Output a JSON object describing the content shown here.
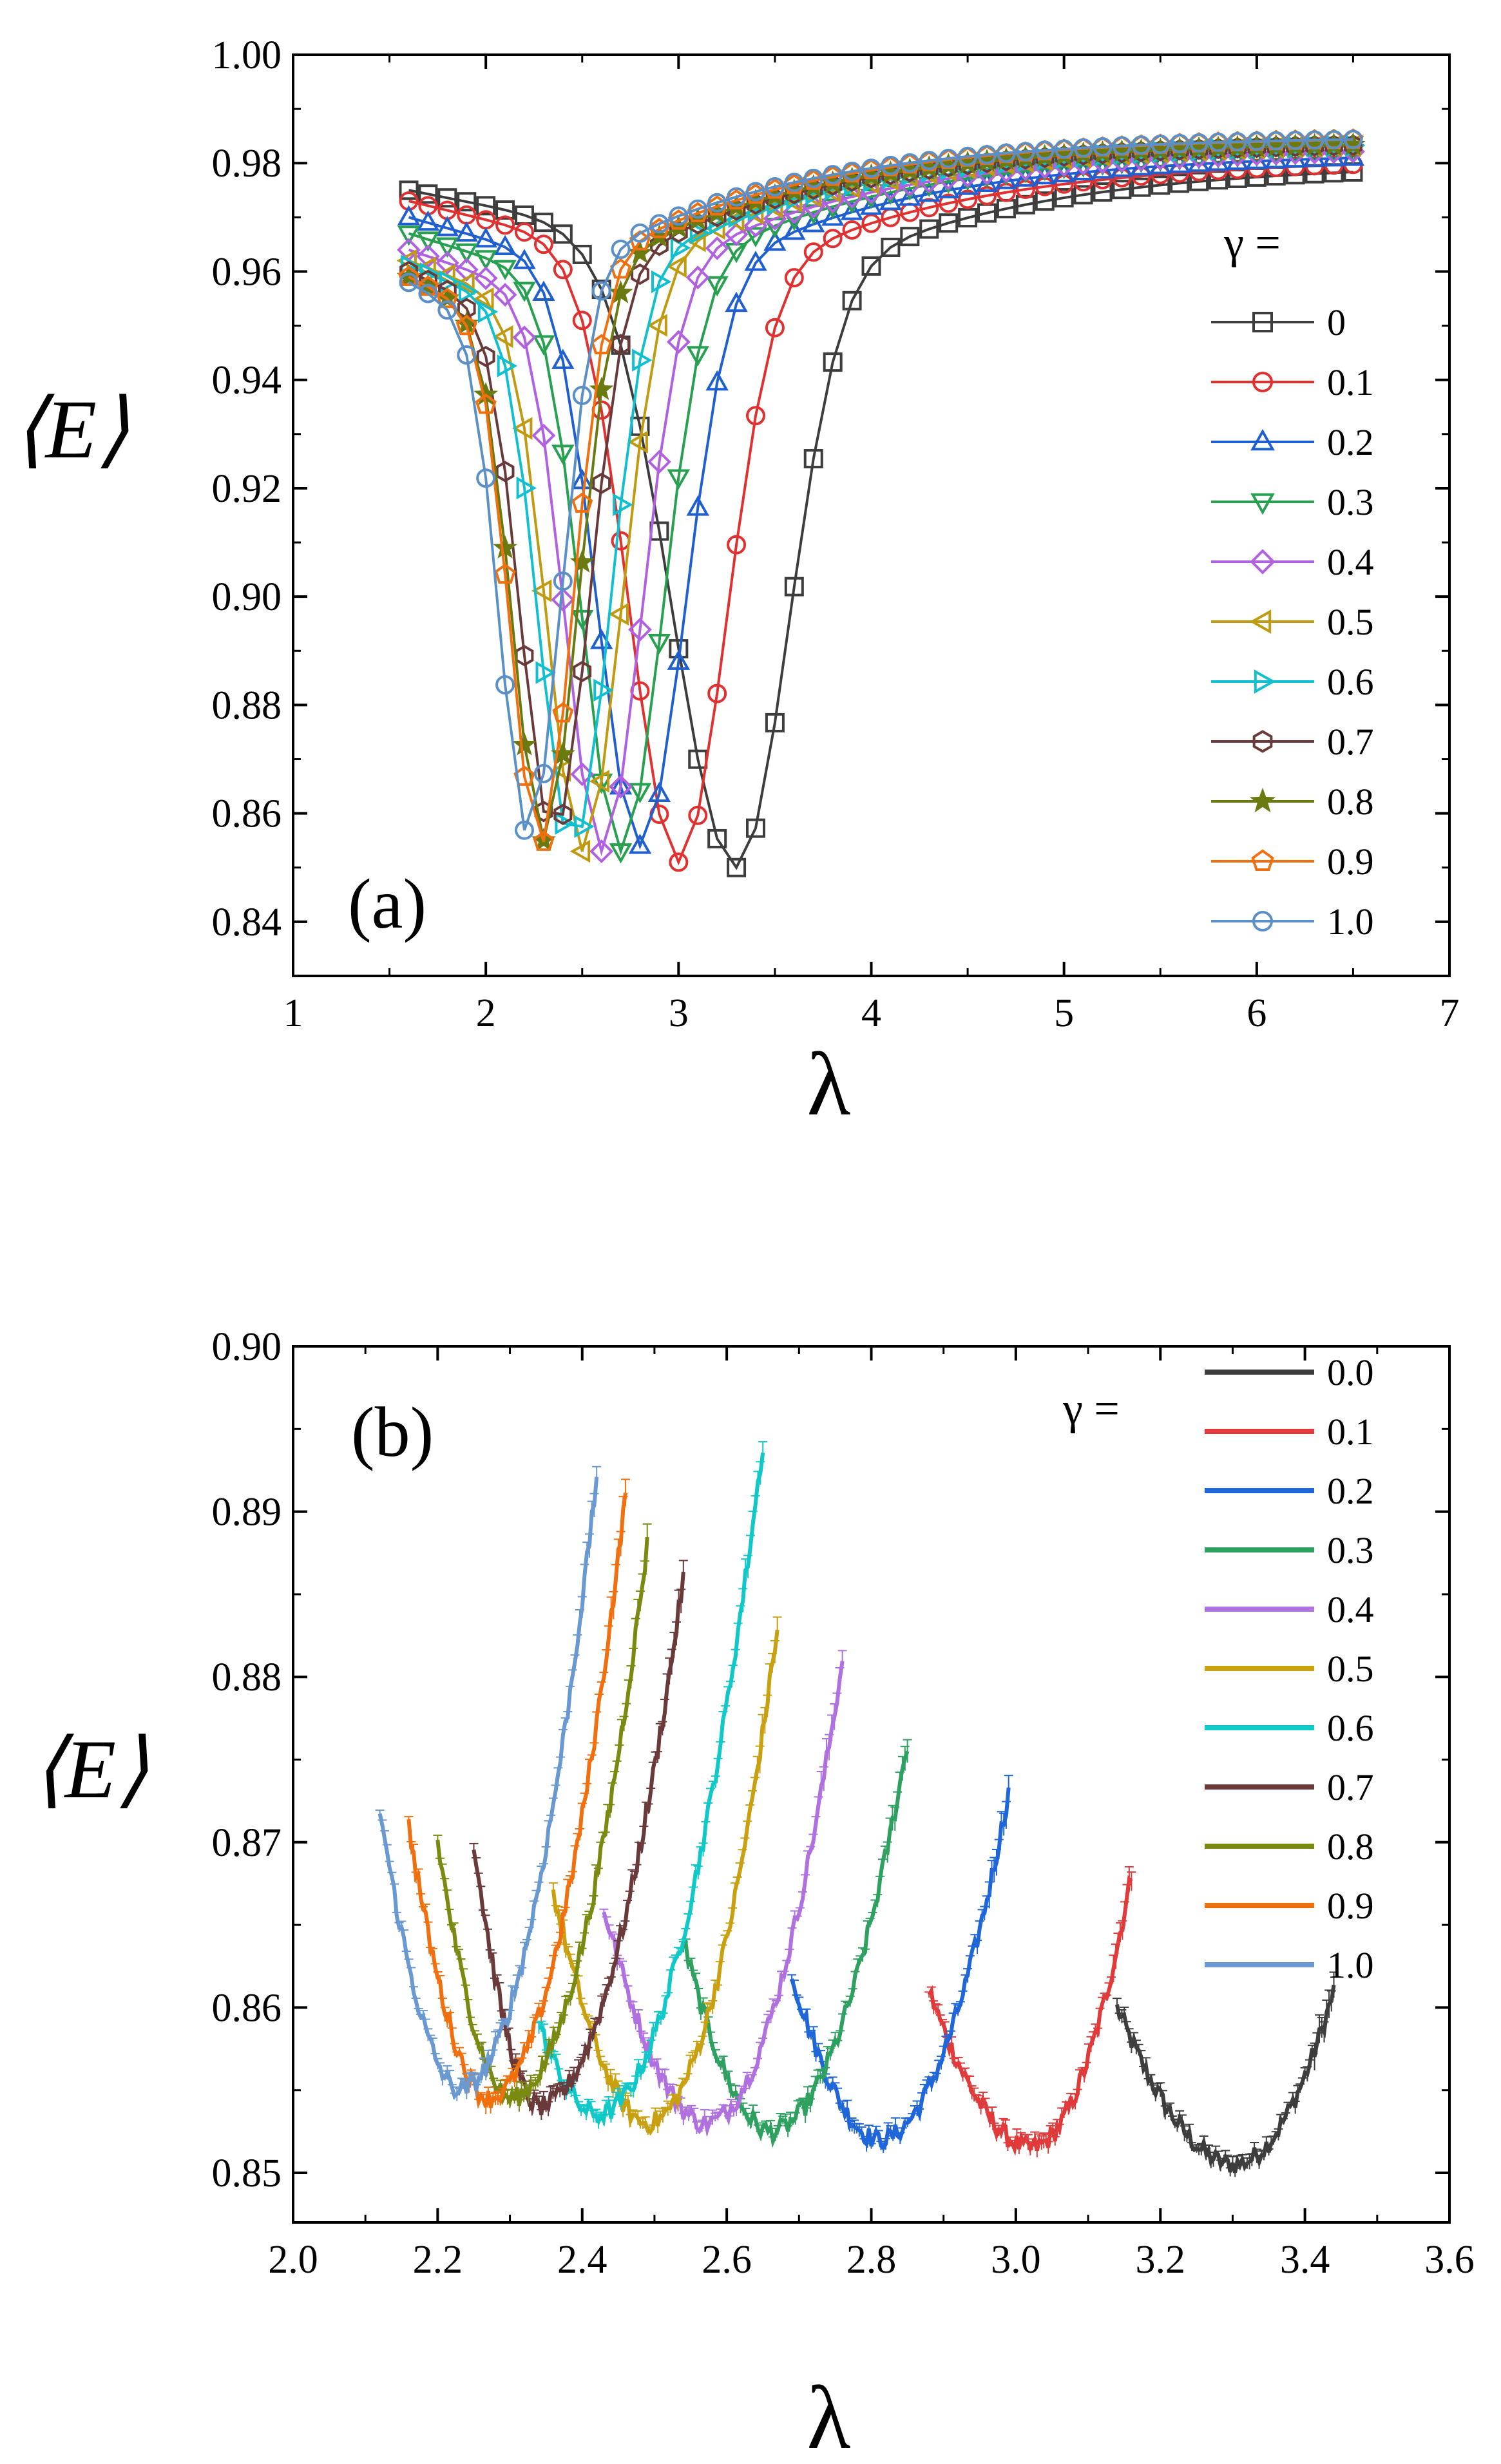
{
  "chart_data": [
    {
      "type": "line",
      "panel_label": "(a)",
      "xlabel": "λ",
      "ylabel": "⟨E⟩",
      "xlim": [
        1,
        7
      ],
      "ylim": [
        0.83,
        1.0
      ],
      "xticks": [
        "1",
        "2",
        "3",
        "4",
        "5",
        "6",
        "7"
      ],
      "yticks": [
        "0.84",
        "0.86",
        "0.88",
        "0.90",
        "0.92",
        "0.94",
        "0.96",
        "0.98",
        "1.00"
      ],
      "legend_title": "γ =",
      "legend_position": "right",
      "series": [
        {
          "name": "0",
          "color": "#3d3d3d",
          "marker": "square",
          "xmin": 3.3,
          "ymin": 0.85,
          "xstart": 1.6,
          "ystart": 0.975,
          "wl": 0.5,
          "wr": 0.35
        },
        {
          "name": "0.1",
          "color": "#e03030",
          "marker": "circle",
          "xmin": 3.0,
          "ymin": 0.851,
          "xstart": 1.6,
          "ystart": 0.973,
          "wl": 0.38,
          "wr": 0.32
        },
        {
          "name": "0.2",
          "color": "#1f5fd0",
          "marker": "triangle-up",
          "xmin": 2.8,
          "ymin": 0.854,
          "xstart": 1.6,
          "ystart": 0.97,
          "wl": 0.33,
          "wr": 0.3
        },
        {
          "name": "0.3",
          "color": "#27a050",
          "marker": "triangle-down",
          "xmin": 2.7,
          "ymin": 0.853,
          "xstart": 1.6,
          "ystart": 0.967,
          "wl": 0.3,
          "wr": 0.28
        },
        {
          "name": "0.4",
          "color": "#b060e0",
          "marker": "diamond",
          "xmin": 2.6,
          "ymin": 0.853,
          "xstart": 1.6,
          "ystart": 0.964,
          "wl": 0.28,
          "wr": 0.27
        },
        {
          "name": "0.5",
          "color": "#c09a10",
          "marker": "triangle-left",
          "xmin": 2.5,
          "ymin": 0.853,
          "xstart": 1.6,
          "ystart": 0.962,
          "wl": 0.27,
          "wr": 0.26
        },
        {
          "name": "0.6",
          "color": "#10c0d0",
          "marker": "triangle-right",
          "xmin": 2.45,
          "ymin": 0.854,
          "xstart": 1.6,
          "ystart": 0.961,
          "wl": 0.26,
          "wr": 0.25
        },
        {
          "name": "0.7",
          "color": "#6a3a3a",
          "marker": "hexagon",
          "xmin": 2.35,
          "ymin": 0.856,
          "xstart": 1.6,
          "ystart": 0.96,
          "wl": 0.25,
          "wr": 0.24
        },
        {
          "name": "0.8",
          "color": "#6a7a10",
          "marker": "star",
          "xmin": 2.3,
          "ymin": 0.855,
          "xstart": 1.6,
          "ystart": 0.959,
          "wl": 0.24,
          "wr": 0.23
        },
        {
          "name": "0.9",
          "color": "#f07010",
          "marker": "pentagon",
          "xmin": 2.28,
          "ymin": 0.854,
          "xstart": 1.6,
          "ystart": 0.959,
          "wl": 0.23,
          "wr": 0.22
        },
        {
          "name": "1.0",
          "color": "#5a8fc8",
          "marker": "circle",
          "xmin": 2.22,
          "ymin": 0.856,
          "xstart": 1.6,
          "ystart": 0.958,
          "wl": 0.22,
          "wr": 0.22
        }
      ],
      "x_end": 6.5,
      "y_end": [
        0.98,
        0.981,
        0.982,
        0.983,
        0.983,
        0.984,
        0.984,
        0.984,
        0.984,
        0.985,
        0.985
      ]
    },
    {
      "type": "line",
      "panel_label": "(b)",
      "xlabel": "λ",
      "ylabel": "⟨E⟩",
      "xlim": [
        2.0,
        3.6
      ],
      "ylim": [
        0.847,
        0.9
      ],
      "xticks": [
        "2.0",
        "2.2",
        "2.4",
        "2.6",
        "2.8",
        "3.0",
        "3.2",
        "3.4",
        "3.6"
      ],
      "yticks": [
        "0.85",
        "0.86",
        "0.87",
        "0.88",
        "0.89",
        "0.90"
      ],
      "legend_title": "γ =",
      "legend_position": "top-right",
      "series": [
        {
          "name": "0.0",
          "color": "#3d3d3d",
          "x0": 3.14,
          "x1": 3.44,
          "xmin": 3.3,
          "ymin": 0.8505,
          "ystart": 0.86,
          "yend": 0.861
        },
        {
          "name": "0.1",
          "color": "#e03a3a",
          "x0": 2.88,
          "x1": 3.16,
          "xmin": 3.02,
          "ymin": 0.8515,
          "ystart": 0.861,
          "yend": 0.868
        },
        {
          "name": "0.2",
          "color": "#1f66d8",
          "x0": 2.69,
          "x1": 2.99,
          "xmin": 2.81,
          "ymin": 0.852,
          "ystart": 0.862,
          "yend": 0.873
        },
        {
          "name": "0.3",
          "color": "#2ea060",
          "x0": 2.54,
          "x1": 2.85,
          "xmin": 2.66,
          "ymin": 0.8525,
          "ystart": 0.864,
          "yend": 0.876
        },
        {
          "name": "0.4",
          "color": "#b070e0",
          "x0": 2.43,
          "x1": 2.76,
          "xmin": 2.57,
          "ymin": 0.853,
          "ystart": 0.866,
          "yend": 0.881
        },
        {
          "name": "0.5",
          "color": "#c8a010",
          "x0": 2.36,
          "x1": 2.67,
          "xmin": 2.49,
          "ymin": 0.853,
          "ystart": 0.867,
          "yend": 0.883
        },
        {
          "name": "0.6",
          "color": "#10c8c8",
          "x0": 2.34,
          "x1": 2.65,
          "xmin": 2.42,
          "ymin": 0.8535,
          "ystart": 0.859,
          "yend": 0.894
        },
        {
          "name": "0.7",
          "color": "#6a3a3a",
          "x0": 2.25,
          "x1": 2.54,
          "xmin": 2.34,
          "ymin": 0.854,
          "ystart": 0.87,
          "yend": 0.886
        },
        {
          "name": "0.8",
          "color": "#7a8a10",
          "x0": 2.2,
          "x1": 2.49,
          "xmin": 2.3,
          "ymin": 0.8545,
          "ystart": 0.87,
          "yend": 0.888
        },
        {
          "name": "0.9",
          "color": "#f07010",
          "x0": 2.16,
          "x1": 2.46,
          "xmin": 2.27,
          "ymin": 0.8545,
          "ystart": 0.871,
          "yend": 0.891
        },
        {
          "name": "1.0",
          "color": "#6a98d0",
          "x0": 2.12,
          "x1": 2.42,
          "xmin": 2.23,
          "ymin": 0.855,
          "ystart": 0.872,
          "yend": 0.892
        }
      ]
    }
  ]
}
